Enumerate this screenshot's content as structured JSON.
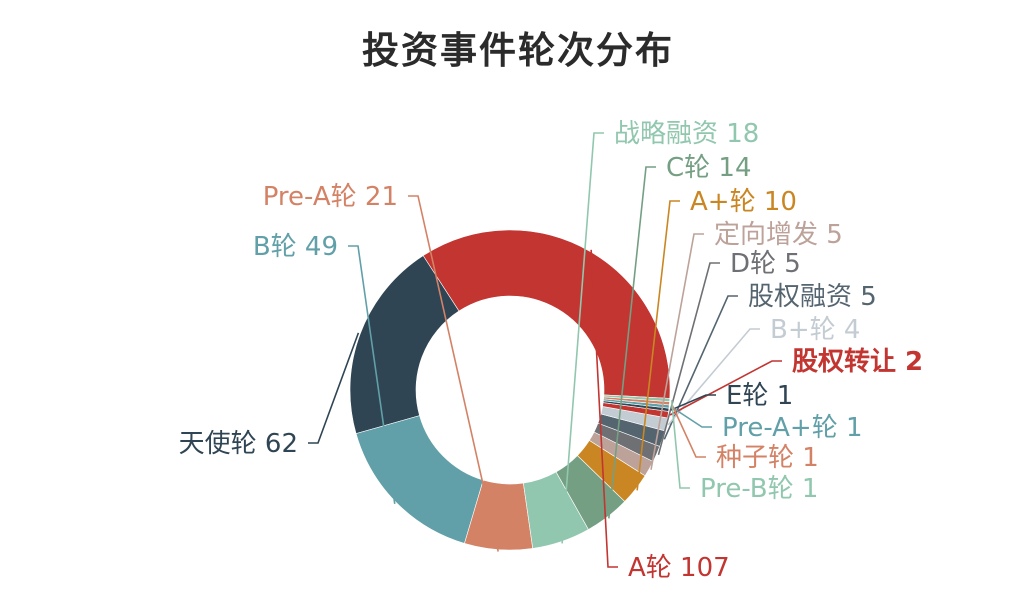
{
  "chart_data": {
    "type": "pie",
    "title": "投资事件轮次分布",
    "start": "A轮",
    "slices": [
      {
        "name": "A轮",
        "value": 107,
        "color": "#c23531",
        "text": "A轮 107"
      },
      {
        "name": "天使轮",
        "value": 62,
        "color": "#2f4554",
        "text": "天使轮 62"
      },
      {
        "name": "B轮",
        "value": 49,
        "color": "#61a0a8",
        "text": "B轮 49"
      },
      {
        "name": "Pre-A轮",
        "value": 21,
        "color": "#d48265",
        "text": "Pre-A轮 21"
      },
      {
        "name": "战略融资",
        "value": 18,
        "color": "#91c7ae",
        "text": "战略融资 18"
      },
      {
        "name": "C轮",
        "value": 14,
        "color": "#749f83",
        "text": "C轮 14"
      },
      {
        "name": "A+轮",
        "value": 10,
        "color": "#ca8622",
        "text": "A+轮 10"
      },
      {
        "name": "定向增发",
        "value": 5,
        "color": "#bda29a",
        "text": "定向增发 5"
      },
      {
        "name": "D轮",
        "value": 5,
        "color": "#6e7074",
        "text": "D轮 5"
      },
      {
        "name": "股权融资",
        "value": 5,
        "color": "#546570",
        "text": "股权融资 5"
      },
      {
        "name": "B+轮",
        "value": 4,
        "color": "#c4ccd3",
        "text": "B+轮 4"
      },
      {
        "name": "股权转让",
        "value": 2,
        "color": "#c23531",
        "text": "股权转让 2"
      },
      {
        "name": "E轮",
        "value": 1,
        "color": "#2f4554",
        "text": "E轮 1"
      },
      {
        "name": "Pre-A+轮",
        "value": 1,
        "color": "#61a0a8",
        "text": "Pre-A+轮 1"
      },
      {
        "name": "种子轮",
        "value": 1,
        "color": "#d48265",
        "text": "种子轮 1"
      },
      {
        "name": "Pre-B轮",
        "value": 1,
        "color": "#91c7ae",
        "text": "Pre-B轮 1"
      }
    ]
  }
}
